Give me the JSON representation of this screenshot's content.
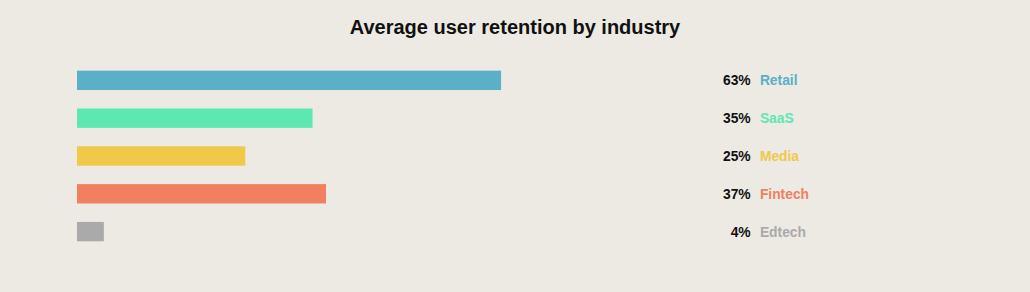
{
  "chart_data": {
    "type": "bar",
    "title": "Average user retention by industry",
    "orientation": "horizontal",
    "categories": [
      "Retail",
      "SaaS",
      "Media",
      "Fintech",
      "Edtech"
    ],
    "values": [
      63,
      35,
      25,
      37,
      4
    ],
    "value_labels": [
      "63%",
      "35%",
      "25%",
      "37%",
      "4%"
    ],
    "colors": [
      "#5BAFC7",
      "#5DE8B0",
      "#F0C84A",
      "#F08060",
      "#AAAAAA"
    ],
    "xlim": [
      0,
      100
    ],
    "data_labels": true,
    "tick_labels": false,
    "grid": false
  }
}
